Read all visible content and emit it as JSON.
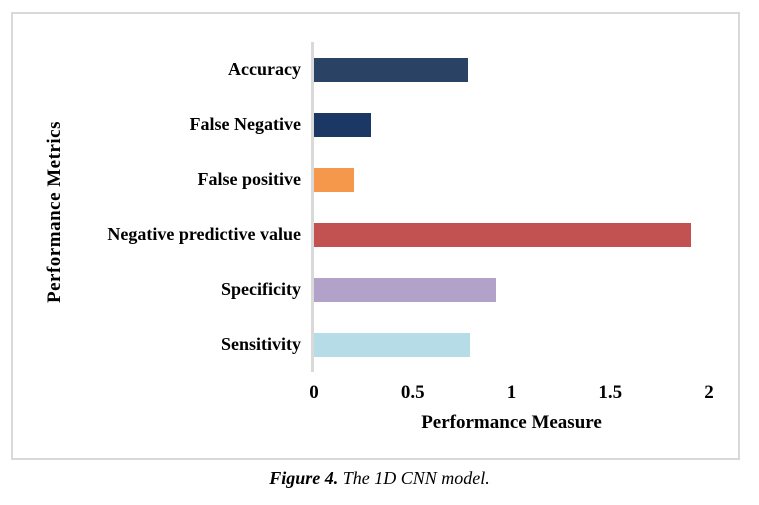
{
  "figure": {
    "caption_prefix": "Figure 4.",
    "caption_text": " The 1D CNN model."
  },
  "chart_data": {
    "type": "bar",
    "orientation": "horizontal",
    "title": "",
    "xlabel": "Performance Measure",
    "ylabel": "Performance Metrics",
    "categories": [
      "Accuracy",
      "False Negative",
      "False positive",
      "Negative predictive value",
      "Specificity",
      "Sensitivity"
    ],
    "values": [
      0.78,
      0.29,
      0.2,
      1.91,
      0.92,
      0.79
    ],
    "bar_colors": [
      "#2a4365",
      "#1b3764",
      "#f6984b",
      "#c25151",
      "#b2a1c9",
      "#b6dce7"
    ],
    "xlim": [
      0,
      2
    ],
    "xticks": [
      0,
      0.5,
      1,
      1.5,
      2
    ],
    "xtick_labels": [
      "0",
      "0.5",
      "1",
      "1.5",
      "2"
    ],
    "axis_color": "#d9d9d9",
    "grid": false,
    "legend": null
  }
}
